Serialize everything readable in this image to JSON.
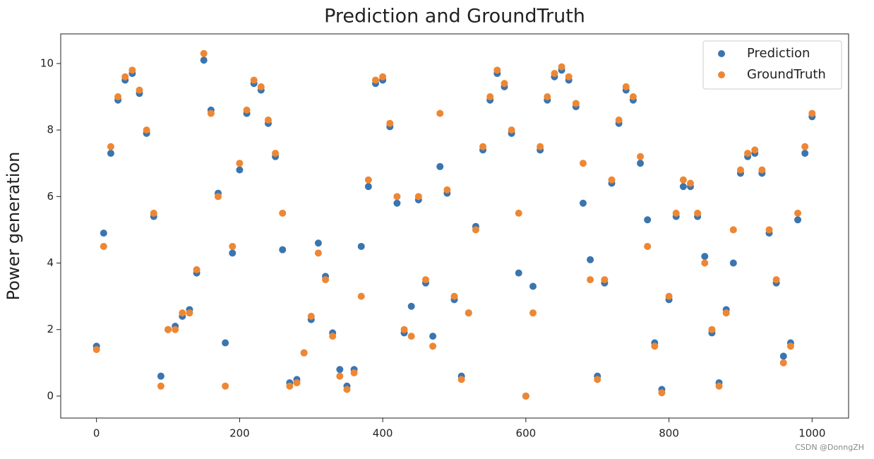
{
  "chart_data": {
    "type": "scatter",
    "title": "Prediction and GroundTruth",
    "y_label": "Power generation",
    "xlim": [
      -50,
      1051
    ],
    "ylim": [
      -0.66,
      10.89
    ],
    "xticks": [
      0,
      200,
      400,
      600,
      800,
      1000
    ],
    "yticks": [
      0,
      2,
      4,
      6,
      8,
      10
    ],
    "legend": "upper right",
    "x": [
      0,
      10,
      20,
      30,
      40,
      50,
      60,
      70,
      80,
      90,
      100,
      110,
      120,
      130,
      140,
      150,
      160,
      170,
      180,
      190,
      200,
      210,
      220,
      230,
      240,
      250,
      260,
      270,
      280,
      290,
      300,
      310,
      320,
      330,
      340,
      350,
      360,
      370,
      380,
      390,
      400,
      410,
      420,
      430,
      440,
      450,
      460,
      470,
      480,
      490,
      500,
      510,
      520,
      530,
      540,
      550,
      560,
      570,
      580,
      590,
      600,
      610,
      620,
      630,
      640,
      650,
      660,
      670,
      680,
      690,
      700,
      710,
      720,
      730,
      740,
      750,
      760,
      770,
      780,
      790,
      800,
      810,
      820,
      830,
      840,
      850,
      860,
      870,
      880,
      890,
      900,
      910,
      920,
      930,
      940,
      950,
      960,
      970,
      980,
      990,
      1000
    ],
    "series": [
      {
        "name": "Prediction",
        "color": "#3a75b0",
        "values": [
          1.5,
          4.9,
          7.3,
          8.9,
          9.5,
          9.7,
          9.1,
          7.9,
          5.4,
          0.6,
          2.0,
          2.1,
          2.4,
          2.6,
          3.7,
          10.1,
          8.6,
          6.1,
          1.6,
          4.3,
          6.8,
          8.5,
          9.4,
          9.2,
          8.2,
          7.2,
          4.4,
          0.4,
          0.5,
          1.3,
          2.3,
          4.6,
          3.6,
          1.9,
          0.8,
          0.3,
          0.8,
          4.5,
          6.3,
          9.4,
          9.5,
          8.1,
          5.8,
          1.9,
          2.7,
          5.9,
          3.4,
          1.8,
          6.9,
          6.1,
          2.9,
          0.6,
          2.5,
          5.1,
          7.4,
          8.9,
          9.7,
          9.3,
          7.9,
          3.7,
          0.0,
          3.3,
          7.4,
          8.9,
          9.6,
          9.8,
          9.5,
          8.7,
          5.8,
          4.1,
          0.6,
          3.4,
          6.4,
          8.2,
          9.2,
          8.9,
          7.0,
          5.3,
          1.6,
          0.2,
          2.9,
          5.4,
          6.3,
          6.3,
          5.4,
          4.2,
          1.9,
          0.4,
          2.6,
          4.0,
          6.7,
          7.2,
          7.3,
          6.7,
          4.9,
          3.4,
          1.2,
          1.6,
          5.3,
          7.3,
          8.4
        ]
      },
      {
        "name": "GroundTruth",
        "color": "#ee8733",
        "values": [
          1.4,
          4.5,
          7.5,
          9.0,
          9.6,
          9.8,
          9.2,
          8.0,
          5.5,
          0.3,
          2.0,
          2.0,
          2.5,
          2.5,
          3.8,
          10.3,
          8.5,
          6.0,
          0.3,
          4.5,
          7.0,
          8.6,
          9.5,
          9.3,
          8.3,
          7.3,
          5.5,
          0.3,
          0.4,
          1.3,
          2.4,
          4.3,
          3.5,
          1.8,
          0.6,
          0.2,
          0.7,
          3.0,
          6.5,
          9.5,
          9.6,
          8.2,
          6.0,
          2.0,
          1.8,
          6.0,
          3.5,
          1.5,
          8.5,
          6.2,
          3.0,
          0.5,
          2.5,
          5.0,
          7.5,
          9.0,
          9.8,
          9.4,
          8.0,
          5.5,
          0.0,
          2.5,
          7.5,
          9.0,
          9.7,
          9.9,
          9.6,
          8.8,
          7.0,
          3.5,
          0.5,
          3.5,
          6.5,
          8.3,
          9.3,
          9.0,
          7.2,
          4.5,
          1.5,
          0.1,
          3.0,
          5.5,
          6.5,
          6.4,
          5.5,
          4.0,
          2.0,
          0.3,
          2.5,
          5.0,
          6.8,
          7.3,
          7.4,
          6.8,
          5.0,
          3.5,
          1.0,
          1.5,
          5.5,
          7.5,
          8.5
        ]
      }
    ]
  },
  "watermark": "CSDN @DonngZH"
}
